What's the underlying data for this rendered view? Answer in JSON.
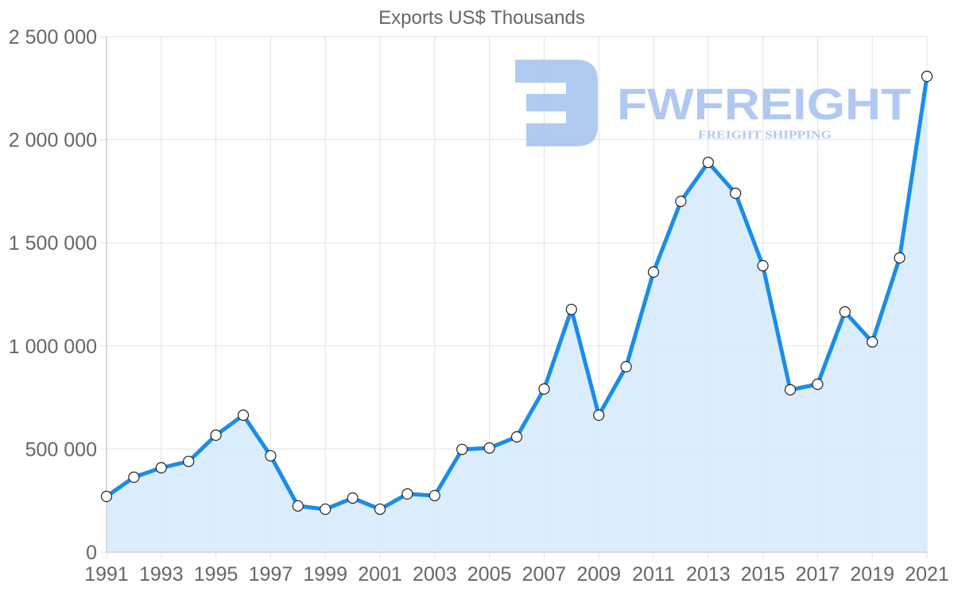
{
  "chart_data": {
    "type": "area",
    "title": "Exports US$ Thousands",
    "xlabel": "",
    "ylabel": "",
    "ylim": [
      0,
      2500000
    ],
    "y_ticks": [
      0,
      500000,
      1000000,
      1500000,
      2000000,
      2500000
    ],
    "y_tick_labels": [
      "0",
      "500 000",
      "1 000 000",
      "1 500 000",
      "2 000 000",
      "2 500 000"
    ],
    "x_tick_labels": [
      "1991",
      "1993",
      "1995",
      "1997",
      "1999",
      "2001",
      "2003",
      "2005",
      "2007",
      "2009",
      "2011",
      "2013",
      "2015",
      "2017",
      "2019",
      "2021"
    ],
    "grid": true,
    "legend": null,
    "x": [
      1991,
      1992,
      1993,
      1994,
      1995,
      1996,
      1997,
      1998,
      1999,
      2000,
      2001,
      2002,
      2003,
      2004,
      2005,
      2006,
      2007,
      2008,
      2009,
      2010,
      2011,
      2012,
      2013,
      2014,
      2015,
      2016,
      2017,
      2018,
      2019,
      2020,
      2021
    ],
    "series": [
      {
        "name": "Exports US$ Thousands",
        "values": [
          270000,
          363000,
          409000,
          440000,
          567000,
          664000,
          467000,
          224000,
          208000,
          262000,
          208000,
          282000,
          274000,
          498000,
          505000,
          559000,
          791000,
          1177000,
          664000,
          899000,
          1358000,
          1701000,
          1890000,
          1740000,
          1389000,
          787000,
          814000,
          1165000,
          1019000,
          1427000,
          2307000
        ]
      }
    ],
    "colors": {
      "line": "#1a8ceb",
      "fill": "#d9ecfc",
      "marker_fill": "#ffffff",
      "marker_stroke": "#222222"
    }
  },
  "watermark": {
    "brand": "FWFREIGHT",
    "tagline": "FREIGHT SHIPPING"
  }
}
